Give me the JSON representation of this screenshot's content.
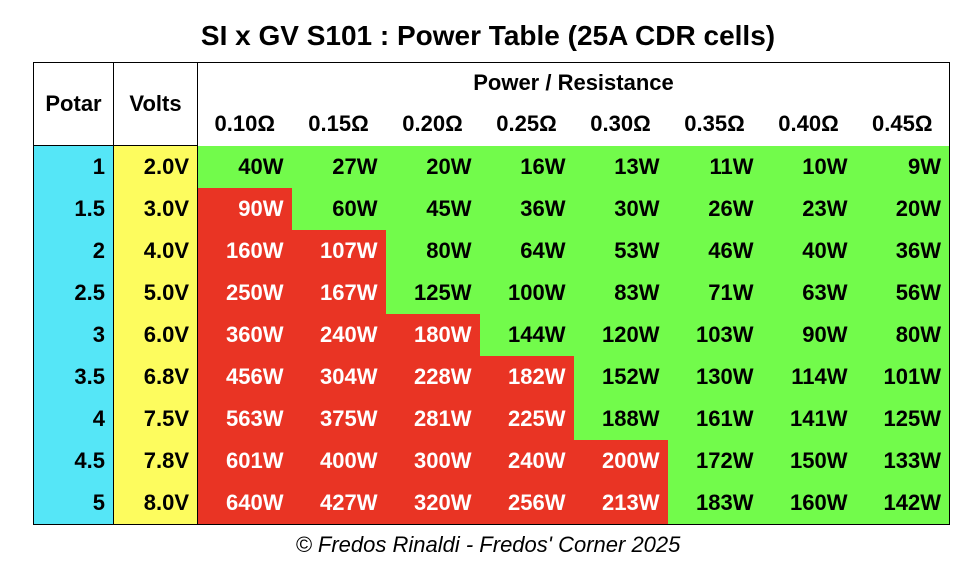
{
  "title": "SI x GV S101 : Power Table (25A CDR cells)",
  "table": {
    "headers": {
      "potar": "Potar",
      "volts": "Volts",
      "group": "Power / Resistance",
      "resistances": [
        "0.10Ω",
        "0.15Ω",
        "0.20Ω",
        "0.25Ω",
        "0.30Ω",
        "0.35Ω",
        "0.40Ω",
        "0.45Ω"
      ]
    },
    "colors": {
      "potar": "#55e6f7",
      "volts": "#fdfc5e",
      "ok": "#72fb4b",
      "over": "#e93424"
    },
    "rows": [
      {
        "potar": "1",
        "volts": "2.0V",
        "cells": [
          "40W",
          "27W",
          "20W",
          "16W",
          "13W",
          "11W",
          "10W",
          "9W"
        ],
        "status": [
          "ok",
          "ok",
          "ok",
          "ok",
          "ok",
          "ok",
          "ok",
          "ok"
        ]
      },
      {
        "potar": "1.5",
        "volts": "3.0V",
        "cells": [
          "90W",
          "60W",
          "45W",
          "36W",
          "30W",
          "26W",
          "23W",
          "20W"
        ],
        "status": [
          "over",
          "ok",
          "ok",
          "ok",
          "ok",
          "ok",
          "ok",
          "ok"
        ]
      },
      {
        "potar": "2",
        "volts": "4.0V",
        "cells": [
          "160W",
          "107W",
          "80W",
          "64W",
          "53W",
          "46W",
          "40W",
          "36W"
        ],
        "status": [
          "over",
          "over",
          "ok",
          "ok",
          "ok",
          "ok",
          "ok",
          "ok"
        ]
      },
      {
        "potar": "2.5",
        "volts": "5.0V",
        "cells": [
          "250W",
          "167W",
          "125W",
          "100W",
          "83W",
          "71W",
          "63W",
          "56W"
        ],
        "status": [
          "over",
          "over",
          "ok",
          "ok",
          "ok",
          "ok",
          "ok",
          "ok"
        ]
      },
      {
        "potar": "3",
        "volts": "6.0V",
        "cells": [
          "360W",
          "240W",
          "180W",
          "144W",
          "120W",
          "103W",
          "90W",
          "80W"
        ],
        "status": [
          "over",
          "over",
          "over",
          "ok",
          "ok",
          "ok",
          "ok",
          "ok"
        ]
      },
      {
        "potar": "3.5",
        "volts": "6.8V",
        "cells": [
          "456W",
          "304W",
          "228W",
          "182W",
          "152W",
          "130W",
          "114W",
          "101W"
        ],
        "status": [
          "over",
          "over",
          "over",
          "over",
          "ok",
          "ok",
          "ok",
          "ok"
        ]
      },
      {
        "potar": "4",
        "volts": "7.5V",
        "cells": [
          "563W",
          "375W",
          "281W",
          "225W",
          "188W",
          "161W",
          "141W",
          "125W"
        ],
        "status": [
          "over",
          "over",
          "over",
          "over",
          "ok",
          "ok",
          "ok",
          "ok"
        ]
      },
      {
        "potar": "4.5",
        "volts": "7.8V",
        "cells": [
          "601W",
          "400W",
          "300W",
          "240W",
          "200W",
          "172W",
          "150W",
          "133W"
        ],
        "status": [
          "over",
          "over",
          "over",
          "over",
          "over",
          "ok",
          "ok",
          "ok"
        ]
      },
      {
        "potar": "5",
        "volts": "8.0V",
        "cells": [
          "640W",
          "427W",
          "320W",
          "256W",
          "213W",
          "183W",
          "160W",
          "142W"
        ],
        "status": [
          "over",
          "over",
          "over",
          "over",
          "over",
          "ok",
          "ok",
          "ok"
        ]
      }
    ]
  },
  "footer": "© Fredos Rinaldi - Fredos' Corner 2025"
}
